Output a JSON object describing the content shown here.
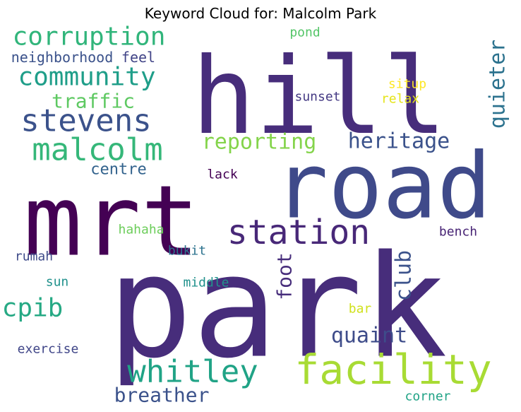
{
  "chart": {
    "title": "Keyword Cloud for: Malcolm Park"
  },
  "chart_data": {
    "type": "wordcloud",
    "title": "Keyword Cloud for: Malcolm Park",
    "words": [
      {
        "text": "park",
        "weight": 100,
        "color": "#472d7b",
        "rotated": false
      },
      {
        "text": "hill",
        "weight": 78,
        "color": "#472d7b",
        "rotated": false
      },
      {
        "text": "road",
        "weight": 68,
        "color": "#3f4a8a",
        "rotated": false
      },
      {
        "text": "mrt",
        "weight": 72,
        "color": "#440154",
        "rotated": false
      },
      {
        "text": "facility",
        "weight": 40,
        "color": "#a8db34",
        "rotated": false
      },
      {
        "text": "station",
        "weight": 34,
        "color": "#482878",
        "rotated": false
      },
      {
        "text": "whitley",
        "weight": 32,
        "color": "#20a386",
        "rotated": false
      },
      {
        "text": "stevens",
        "weight": 30,
        "color": "#3b528b",
        "rotated": false
      },
      {
        "text": "malcolm",
        "weight": 30,
        "color": "#35b779",
        "rotated": false
      },
      {
        "text": "corruption",
        "weight": 26,
        "color": "#31b57b",
        "rotated": false
      },
      {
        "text": "community",
        "weight": 26,
        "color": "#1f9e89",
        "rotated": false
      },
      {
        "text": "cpib",
        "weight": 26,
        "color": "#26a984",
        "rotated": false
      },
      {
        "text": "quaint",
        "weight": 21,
        "color": "#3e4c8a",
        "rotated": false
      },
      {
        "text": "heritage",
        "weight": 21,
        "color": "#3b528b",
        "rotated": false
      },
      {
        "text": "club",
        "weight": 21,
        "color": "#3b528b",
        "rotated": true
      },
      {
        "text": "reporting",
        "weight": 21,
        "color": "#84d44b",
        "rotated": false
      },
      {
        "text": "quieter",
        "weight": 20,
        "color": "#2c728e",
        "rotated": true
      },
      {
        "text": "traffic",
        "weight": 20,
        "color": "#5ec962",
        "rotated": false
      },
      {
        "text": "breather",
        "weight": 20,
        "color": "#3b528b",
        "rotated": false
      },
      {
        "text": "foot",
        "weight": 20,
        "color": "#472d7b",
        "rotated": true
      },
      {
        "text": "centre",
        "weight": 16,
        "color": "#33638d",
        "rotated": false
      },
      {
        "text": "neighborhood",
        "weight": 14,
        "color": "#3b528b",
        "rotated": false
      },
      {
        "text": "feel",
        "weight": 14,
        "color": "#414487",
        "rotated": false
      },
      {
        "text": "pond",
        "weight": 13,
        "color": "#54c568",
        "rotated": false
      },
      {
        "text": "situp",
        "weight": 13,
        "color": "#fde725",
        "rotated": false
      },
      {
        "text": "relax",
        "weight": 13,
        "color": "#e5e419",
        "rotated": false
      },
      {
        "text": "sunset",
        "weight": 13,
        "color": "#443983",
        "rotated": false
      },
      {
        "text": "lack",
        "weight": 13,
        "color": "#440154",
        "rotated": false
      },
      {
        "text": "hahaha",
        "weight": 13,
        "color": "#6ccd5a",
        "rotated": false
      },
      {
        "text": "bench",
        "weight": 13,
        "color": "#482475",
        "rotated": false
      },
      {
        "text": "bukit",
        "weight": 13,
        "color": "#2c728e",
        "rotated": false
      },
      {
        "text": "rumah",
        "weight": 13,
        "color": "#3e4a89",
        "rotated": false
      },
      {
        "text": "sun",
        "weight": 13,
        "color": "#21918c",
        "rotated": false
      },
      {
        "text": "middle",
        "weight": 13,
        "color": "#21918c",
        "rotated": false
      },
      {
        "text": "bar",
        "weight": 13,
        "color": "#d0e11c",
        "rotated": false
      },
      {
        "text": "exercise",
        "weight": 13,
        "color": "#404688",
        "rotated": false
      },
      {
        "text": "corner",
        "weight": 13,
        "color": "#20a386",
        "rotated": false
      }
    ]
  }
}
